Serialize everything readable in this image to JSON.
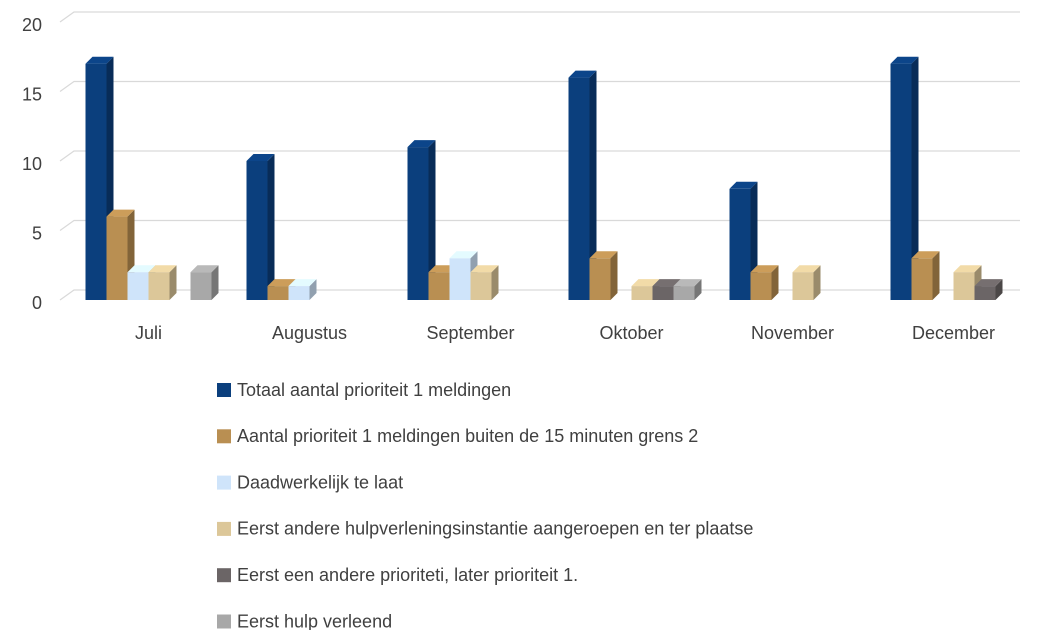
{
  "chart_data": {
    "type": "bar3d",
    "categories": [
      "Juli",
      "Augustus",
      "September",
      "Oktober",
      "November",
      "December"
    ],
    "series": [
      {
        "name": "Totaal aantal prioriteit 1 meldingen",
        "color": "#0b3f7d",
        "values": [
          17,
          10,
          11,
          16,
          8,
          17
        ]
      },
      {
        "name": "Aantal prioriteit 1 meldingen buiten de 15 minuten grens 2",
        "color": "#b98f52",
        "values": [
          6,
          1,
          2,
          3,
          2,
          3
        ]
      },
      {
        "name": "Daadwerkelijk te laat",
        "color": "#cfe4fa",
        "values": [
          2,
          1,
          3,
          0,
          0,
          0
        ]
      },
      {
        "name": "Eerst andere hulpverleningsinstantie aangeroepen en ter plaatse",
        "color": "#dcc799",
        "values": [
          2,
          0,
          2,
          1,
          2,
          2
        ]
      },
      {
        "name": "Eerst een andere prioriteti, later prioriteit 1.",
        "color": "#6b6566",
        "values": [
          0,
          0,
          0,
          1,
          0,
          1
        ]
      },
      {
        "name": "Eerst hulp verleend",
        "color": "#a8a8a8",
        "values": [
          2,
          0,
          0,
          1,
          0,
          0
        ]
      }
    ],
    "ylim": [
      0,
      20
    ],
    "yticks": [
      0,
      5,
      10,
      15,
      20
    ],
    "grid": true
  }
}
